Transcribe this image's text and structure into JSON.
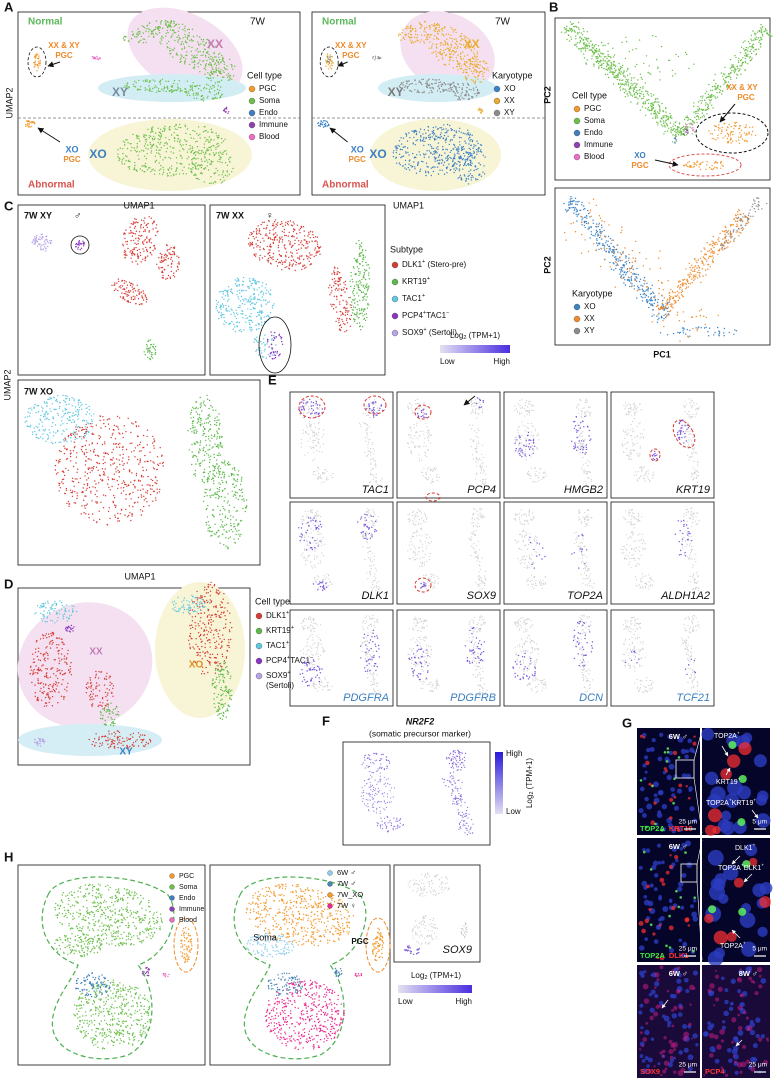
{
  "panel_labels": [
    "A",
    "B",
    "C",
    "D",
    "E",
    "F",
    "G",
    "H"
  ],
  "A": {
    "left": {
      "stage": "7W",
      "normal": "Normal",
      "abnormal": "Abnormal",
      "regions": [
        "XX",
        "XY",
        "XO"
      ],
      "pgc_normal": "XX & XY",
      "pgc_abnormal": "XO",
      "pgc_labels": [
        "PGC",
        "PGC"
      ],
      "x_label": "UMAP1",
      "y_label": "UMAP2",
      "legend_title": "Cell type",
      "legend": [
        {
          "name": "PGC",
          "color": "#f39a2d"
        },
        {
          "name": "Soma",
          "color": "#6cc04a"
        },
        {
          "name": "Endo",
          "color": "#3f7fbf"
        },
        {
          "name": "Immune",
          "color": "#8e3fb0"
        },
        {
          "name": "Blood",
          "color": "#ec6fc6"
        }
      ]
    },
    "right": {
      "stage": "7W",
      "normal": "Normal",
      "abnormal": "Abnormal",
      "regions": [
        "XX",
        "XY",
        "XO"
      ],
      "pgc_normal": "XX & XY",
      "pgc_abnormal": "XO",
      "pgc_labels": [
        "PGC",
        "PGC"
      ],
      "x_label": "UMAP1",
      "legend_title": "Karyotype",
      "legend": [
        {
          "name": "XO",
          "color": "#3b82c4"
        },
        {
          "name": "XX",
          "color": "#e9ac2e"
        },
        {
          "name": "XY",
          "color": "#8c8c8c"
        }
      ]
    }
  },
  "B": {
    "top": {
      "legend_title": "Cell type",
      "legend": [
        {
          "name": "PGC",
          "color": "#f39a2d"
        },
        {
          "name": "Soma",
          "color": "#6cc04a"
        },
        {
          "name": "Endo",
          "color": "#3f7fbf"
        },
        {
          "name": "Immune",
          "color": "#8e3fb0"
        },
        {
          "name": "Blood",
          "color": "#ec6fc6"
        }
      ],
      "pgc_normal": "XX & XY",
      "pgc_abnormal": "XO",
      "pgc_labels": [
        "PGC",
        "PGC"
      ],
      "y_label": "PC2"
    },
    "bottom": {
      "legend_title": "Karyotype",
      "legend": [
        {
          "name": "XO",
          "color": "#3b82c4"
        },
        {
          "name": "XX",
          "color": "#f08a2a"
        },
        {
          "name": "XY",
          "color": "#8c8c8c"
        }
      ],
      "y_label": "PC2",
      "x_label": "PC1"
    }
  },
  "C": {
    "plots": [
      {
        "title": "7W XY",
        "sex": "♂"
      },
      {
        "title": "7W XX",
        "sex": "♀"
      },
      {
        "title": "7W XO"
      }
    ],
    "legend_title": "Subtype",
    "legend": [
      {
        "label": [
          {
            "t": "DLK1"
          },
          {
            "sup": "+"
          },
          {
            "t": " (Stero-pre)"
          }
        ],
        "color": "#d63b34"
      },
      {
        "label": [
          {
            "t": "KRT19"
          },
          {
            "sup": "+"
          }
        ],
        "color": "#5cb84a"
      },
      {
        "label": [
          {
            "t": "TAC1"
          },
          {
            "sup": "+"
          }
        ],
        "color": "#5ec8de"
      },
      {
        "label": [
          {
            "t": "PCP4"
          },
          {
            "sup": "+"
          },
          {
            "t": "TAC1"
          },
          {
            "sup": "−"
          }
        ],
        "color": "#8a35c2"
      },
      {
        "label": [
          {
            "t": "SOX9"
          },
          {
            "sup": "+"
          },
          {
            "t": " (Sertoli)"
          }
        ],
        "color": "#b7a3e8"
      }
    ],
    "colorbar": {
      "title": [
        {
          "t": "Log"
        },
        {
          "sub": "2"
        },
        {
          "t": " (TPM+1)"
        }
      ],
      "low": "Low",
      "high": "High"
    },
    "x_label": "UMAP1",
    "y_label": "UMAP2"
  },
  "D": {
    "regions": [
      "XX",
      "XO",
      "XY"
    ],
    "legend_title": "Cell type",
    "legend": [
      {
        "label": [
          {
            "t": "DLK1"
          },
          {
            "sup": "+"
          }
        ],
        "color": "#d63b34"
      },
      {
        "label": [
          {
            "t": "KRT19"
          },
          {
            "sup": "+"
          }
        ],
        "color": "#5cb84a"
      },
      {
        "label": [
          {
            "t": "TAC1"
          },
          {
            "sup": "+"
          }
        ],
        "color": "#5ec8de"
      },
      {
        "label": [
          {
            "t": "PCP4"
          },
          {
            "sup": "+"
          },
          {
            "t": "TAC1"
          },
          {
            "sup": "−"
          }
        ],
        "color": "#8a35c2"
      },
      {
        "label": [
          {
            "t": "SOX9"
          },
          {
            "sup": "+"
          }
        ],
        "sublabel": "(Sertoli)",
        "color": "#b7a3e8"
      }
    ]
  },
  "E": {
    "genes": [
      {
        "name": "TAC1",
        "color": "#111111"
      },
      {
        "name": "PCP4",
        "color": "#111111"
      },
      {
        "name": "HMGB2",
        "color": "#111111"
      },
      {
        "name": "KRT19",
        "color": "#111111"
      },
      {
        "name": "DLK1",
        "color": "#111111"
      },
      {
        "name": "SOX9",
        "color": "#111111"
      },
      {
        "name": "TOP2A",
        "color": "#111111"
      },
      {
        "name": "ALDH1A2",
        "color": "#111111"
      },
      {
        "name": "PDGFRA",
        "color": "#3a7fc0"
      },
      {
        "name": "PDGFRB",
        "color": "#3a7fc0"
      },
      {
        "name": "DCN",
        "color": "#3a7fc0"
      },
      {
        "name": "TCF21",
        "color": "#3a7fc0"
      }
    ]
  },
  "F": {
    "gene": "NR2F2",
    "subtitle": "(somatic precursor marker)",
    "colorbar": {
      "title": [
        {
          "t": "Log"
        },
        {
          "sub": "2"
        },
        {
          "t": " (TPM+1)"
        }
      ],
      "high": "High",
      "low": "Low"
    }
  },
  "G": {
    "panels": [
      {
        "stage": "6W",
        "sex": "♂",
        "stains": [
          {
            "text": "TOP2A",
            "color": "#3ee63e"
          },
          {
            "text": "KRT19",
            "color": "#ff3535"
          }
        ],
        "scale": "25 μm"
      },
      {
        "annotations": [
          [
            {
              "t": "TOP2A"
            },
            {
              "sup": "+"
            }
          ],
          [
            {
              "t": "KRT19"
            },
            {
              "sup": "+"
            }
          ],
          [
            {
              "t": "TOP2A"
            },
            {
              "sup": "+"
            },
            {
              "t": "KRT19"
            },
            {
              "sup": "+"
            }
          ]
        ],
        "scale": "5 μm"
      },
      {
        "stage": "6W",
        "sex": "♂",
        "stains": [
          {
            "text": "TOP2A",
            "color": "#3ee63e"
          },
          {
            "text": "DLK1",
            "color": "#ff3535"
          }
        ],
        "scale": "25 μm"
      },
      {
        "annotations": [
          [
            {
              "t": "DLK1"
            },
            {
              "sup": "+"
            }
          ],
          [
            {
              "t": "TOP2A"
            },
            {
              "sup": "+"
            },
            {
              "t": "DLK1"
            },
            {
              "sup": "+"
            }
          ],
          [
            {
              "t": "TOP2A"
            },
            {
              "sup": "+"
            }
          ]
        ],
        "scale": "5 μm"
      },
      {
        "stage": "6W",
        "sex": "♂",
        "stains": [
          {
            "text": "SOX9",
            "color": "#ff3535"
          }
        ],
        "scale": "25 μm"
      },
      {
        "stage": "8W",
        "sex": "♂",
        "stains": [
          {
            "text": "PCP4",
            "color": "#ff3535"
          }
        ],
        "scale": "25 μm"
      }
    ]
  },
  "H": {
    "legend_celltype": [
      {
        "name": "PGC",
        "color": "#f39a2d"
      },
      {
        "name": "Soma",
        "color": "#6cc04a"
      },
      {
        "name": "Endo",
        "color": "#3f7fbf"
      },
      {
        "name": "Immune",
        "color": "#8e3fb0"
      },
      {
        "name": "Blood",
        "color": "#ec6fc6"
      }
    ],
    "legend_sample": [
      {
        "name": "6W ♂",
        "color": "#8ecfea"
      },
      {
        "name": "7W ♂",
        "color": "#4a86b5"
      },
      {
        "name": "7W_XO",
        "color": "#f39a2d"
      },
      {
        "name": "7W ♀",
        "color": "#ea2a8c"
      }
    ],
    "soma": "Soma",
    "pgc": "PGC",
    "gene": "SOX9",
    "colorbar": {
      "title": [
        {
          "t": "Log"
        },
        {
          "sub": "2"
        },
        {
          "t": " (TPM+1)"
        }
      ],
      "low": "Low",
      "high": "High"
    }
  }
}
